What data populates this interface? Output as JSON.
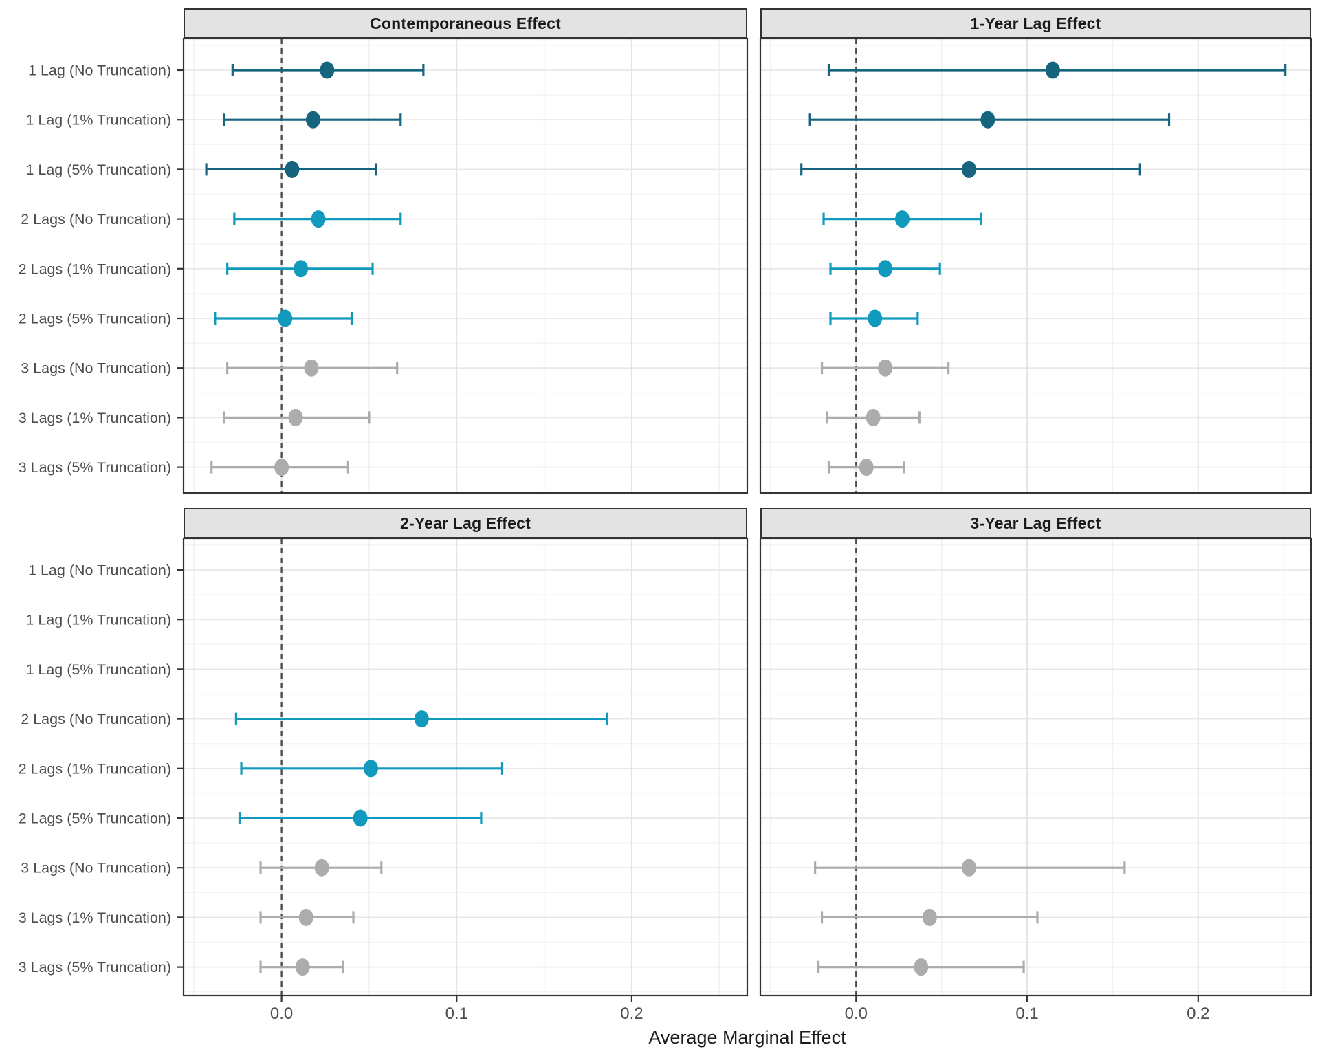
{
  "figure": {
    "background": "#FFFFFF"
  },
  "chart_data": {
    "type": "pointrange",
    "title": "",
    "xlabel": "Average Marginal Effect",
    "facets": [
      "Contemporaneous Effect",
      "1-Year Lag Effect",
      "2-Year Lag Effect",
      "3-Year Lag Effect"
    ],
    "categories": [
      "1 Lag (No Truncation)",
      "1 Lag (1% Truncation)",
      "1 Lag (5% Truncation)",
      "2 Lags (No Truncation)",
      "2 Lags (1% Truncation)",
      "2 Lags (5% Truncation)",
      "3 Lags (No Truncation)",
      "3 Lags (1% Truncation)",
      "3 Lags (5% Truncation)"
    ],
    "category_colors": [
      "#17647E",
      "#17647E",
      "#17647E",
      "#1199BE",
      "#1199BE",
      "#1199BE",
      "#ACACAC",
      "#ACACAC",
      "#ACACAC"
    ],
    "x_ticks": [
      "0.0",
      "0.1",
      "0.2"
    ],
    "x_tick_values": [
      0.0,
      0.1,
      0.2
    ],
    "x_minor_values": [
      -0.05,
      0.05,
      0.15,
      0.25
    ],
    "xlim": [
      -0.056,
      0.266
    ],
    "zero_reference": 0.0,
    "grid": "on",
    "legend_position": "none",
    "panels": [
      {
        "title": "Contemporaneous Effect",
        "est": [
          0.026,
          0.018,
          0.006,
          0.021,
          0.011,
          0.002,
          0.017,
          0.008,
          0.0
        ],
        "lo": [
          -0.028,
          -0.033,
          -0.043,
          -0.027,
          -0.031,
          -0.038,
          -0.031,
          -0.033,
          -0.04
        ],
        "hi": [
          0.081,
          0.068,
          0.054,
          0.068,
          0.052,
          0.04,
          0.066,
          0.05,
          0.038
        ]
      },
      {
        "title": "1-Year Lag Effect",
        "est": [
          0.115,
          0.077,
          0.066,
          0.027,
          0.017,
          0.011,
          0.017,
          0.01,
          0.006
        ],
        "lo": [
          -0.016,
          -0.027,
          -0.032,
          -0.019,
          -0.015,
          -0.015,
          -0.02,
          -0.017,
          -0.016
        ],
        "hi": [
          0.251,
          0.183,
          0.166,
          0.073,
          0.049,
          0.036,
          0.054,
          0.037,
          0.028
        ]
      },
      {
        "title": "2-Year Lag Effect",
        "est": [
          null,
          null,
          null,
          0.08,
          0.051,
          0.045,
          0.023,
          0.014,
          0.012
        ],
        "lo": [
          null,
          null,
          null,
          -0.026,
          -0.023,
          -0.024,
          -0.012,
          -0.012,
          -0.012
        ],
        "hi": [
          null,
          null,
          null,
          0.186,
          0.126,
          0.114,
          0.057,
          0.041,
          0.035
        ]
      },
      {
        "title": "3-Year Lag Effect",
        "est": [
          null,
          null,
          null,
          null,
          null,
          null,
          0.066,
          0.043,
          0.038
        ],
        "lo": [
          null,
          null,
          null,
          null,
          null,
          null,
          -0.024,
          -0.02,
          -0.022
        ],
        "hi": [
          null,
          null,
          null,
          null,
          null,
          null,
          0.157,
          0.106,
          0.098
        ]
      }
    ]
  },
  "colors": {
    "dark_teal_1lag": "#17647E",
    "cyan_2lags": "#1199BE",
    "gray_3lags": "#ACACAC",
    "strip_background": "#E3E3E3",
    "panel_border": "#333333",
    "grid_major": "#E4E4E4",
    "grid_minor": "#F1F1F1",
    "zero_line": "#4D4D4D",
    "axis_text": "#4D4D4D",
    "tick_mark": "#333333"
  }
}
